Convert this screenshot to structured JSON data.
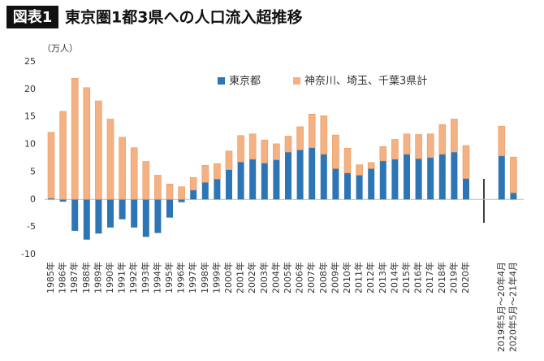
{
  "chart_data": {
    "type": "bar",
    "stacked": true,
    "badge": "図表1",
    "title": "東京圏1都3県への人口流入超推移",
    "y_unit": "（万人）",
    "categories": [
      "1985年",
      "1986年",
      "1987年",
      "1988年",
      "1989年",
      "1990年",
      "1991年",
      "1992年",
      "1993年",
      "1994年",
      "1995年",
      "1996年",
      "1997年",
      "1998年",
      "1999年",
      "2000年",
      "2001年",
      "2002年",
      "2003年",
      "2004年",
      "2005年",
      "2006年",
      "2007年",
      "2008年",
      "2009年",
      "2010年",
      "2011年",
      "2012年",
      "2013年",
      "2014年",
      "2015年",
      "2016年",
      "2017年",
      "2018年",
      "2019年",
      "2020年",
      null,
      null,
      "2019年5月～20年4月",
      "2020年5月～21年4月"
    ],
    "series": [
      {
        "name": "東京都",
        "color": "#2e75b6",
        "values": [
          0.2,
          -0.4,
          -5.7,
          -7.3,
          -6.2,
          -5.1,
          -3.6,
          -5.1,
          -6.8,
          -6.1,
          -3.3,
          -0.5,
          1.7,
          3.1,
          3.7,
          5.4,
          6.8,
          7.3,
          6.6,
          7.2,
          8.6,
          9.0,
          9.4,
          8.2,
          5.6,
          4.8,
          4.4,
          5.6,
          7.0,
          7.3,
          8.2,
          7.4,
          7.6,
          8.2,
          8.6,
          3.8,
          null,
          null,
          7.9,
          1.2
        ]
      },
      {
        "name": "神奈川、埼玉、千葉3県計",
        "color": "#f4b183",
        "values": [
          12.0,
          16.0,
          22.0,
          20.3,
          17.9,
          14.6,
          11.3,
          9.4,
          6.9,
          4.4,
          2.8,
          2.3,
          2.3,
          3.1,
          2.8,
          3.4,
          4.8,
          4.6,
          4.2,
          2.9,
          2.9,
          4.2,
          6.1,
          7.0,
          6.1,
          4.5,
          1.9,
          1.1,
          2.6,
          3.6,
          3.7,
          4.4,
          4.3,
          5.4,
          6.0,
          6.0,
          null,
          null,
          5.4,
          6.5
        ]
      }
    ],
    "ylim": [
      -10,
      25
    ],
    "yticks": [
      -10,
      -5,
      0,
      5,
      10,
      15,
      20,
      25
    ],
    "grid": false
  }
}
